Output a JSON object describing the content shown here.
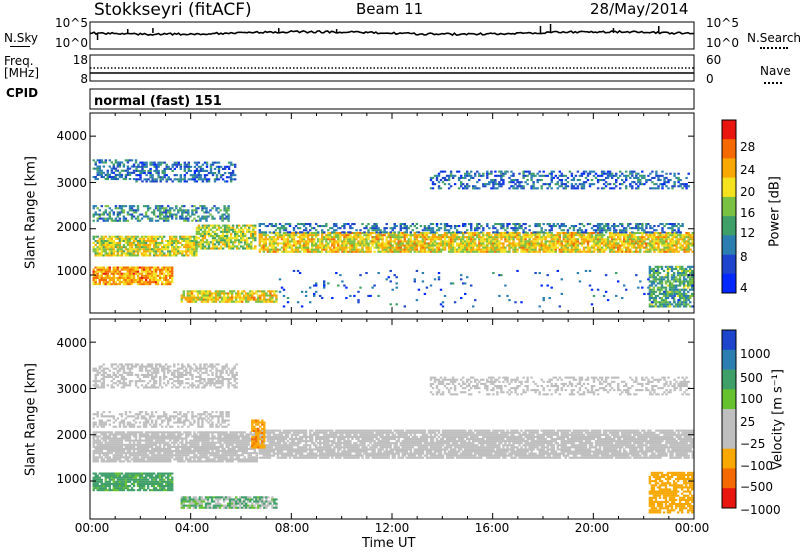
{
  "header": {
    "site": "Stokkseyri (fitACF)",
    "beam": "Beam 11",
    "date": "28/May/2014"
  },
  "side_labels": {
    "nsky": "N.Sky",
    "freq": "Freq.",
    "mhz": "[MHz]",
    "cpid": "CPID",
    "nsearch": "N.Search",
    "nave": "Nave"
  },
  "cpid_text": "normal (fast) 151",
  "top_ticks": {
    "nsky_left": [
      "10^5",
      "10^0"
    ],
    "nsky_right": [
      "10^5",
      "10^0"
    ],
    "freq_left": [
      "18",
      "8"
    ],
    "freq_right": [
      "60",
      "0"
    ]
  },
  "colors": {
    "power_scale": [
      "#0028ff",
      "#1c44cc",
      "#2a7fb0",
      "#3f9f68",
      "#7ac143",
      "#f5e21e",
      "#f8a800",
      "#f56a00",
      "#e8160e"
    ],
    "velocity_scale": [
      "#e8160e",
      "#f56a00",
      "#f8a800",
      "#bfbfbf",
      "#bfbfbf",
      "#65c12e",
      "#3f9f68",
      "#2a7fb0",
      "#1c44cc"
    ],
    "ground_scatter": "#bebebe"
  },
  "chart_data": [
    {
      "type": "heatmap",
      "title": "Power",
      "xlabel": "",
      "ylabel": "Slant Range [km]",
      "x_ticks": [
        "00:00",
        "04:00",
        "08:00",
        "12:00",
        "16:00",
        "20:00",
        "00:00"
      ],
      "y_ticks": [
        "1000",
        "2000",
        "3000",
        "4000"
      ],
      "xlim_hours": [
        0,
        24
      ],
      "ylim_km": [
        180,
        4500
      ],
      "colorbar_label": "Power [dB]",
      "colorbar_ticks": [
        "4",
        "8",
        "12",
        "16",
        "20",
        "24",
        "28"
      ],
      "colorbar_range": [
        0,
        30
      ],
      "bands": [
        {
          "t0": 0.1,
          "t1": 1.8,
          "r0": 3050,
          "r1": 3500,
          "dens": 0.55,
          "p": 8
        },
        {
          "t0": 1.8,
          "t1": 5.8,
          "r0": 3000,
          "r1": 3450,
          "dens": 0.5,
          "p": 7
        },
        {
          "t0": 0.1,
          "t1": 5.5,
          "r0": 2150,
          "r1": 2500,
          "dens": 0.5,
          "p": 10
        },
        {
          "t0": 0.1,
          "t1": 4.2,
          "r0": 1400,
          "r1": 1850,
          "dens": 0.85,
          "p": 17
        },
        {
          "t0": 4.2,
          "t1": 6.6,
          "r0": 1550,
          "r1": 2050,
          "dens": 0.75,
          "p": 16
        },
        {
          "t0": 0.1,
          "t1": 3.3,
          "r0": 780,
          "r1": 1150,
          "dens": 0.85,
          "p": 22
        },
        {
          "t0": 3.6,
          "t1": 7.4,
          "r0": 400,
          "r1": 650,
          "dens": 0.8,
          "p": 19
        },
        {
          "t0": 6.7,
          "t1": 23.9,
          "r0": 1480,
          "r1": 1900,
          "dens": 0.85,
          "p": 19
        },
        {
          "t0": 6.7,
          "t1": 23.5,
          "r0": 1900,
          "r1": 2100,
          "dens": 0.45,
          "p": 8
        },
        {
          "t0": 13.5,
          "t1": 23.8,
          "r0": 2850,
          "r1": 3250,
          "dens": 0.4,
          "p": 7
        },
        {
          "t0": 22.2,
          "t1": 23.9,
          "r0": 300,
          "r1": 1200,
          "dens": 0.7,
          "p": 12
        },
        {
          "t0": 7.5,
          "t1": 23.9,
          "r0": 300,
          "r1": 1100,
          "dens": 0.04,
          "p": 6
        }
      ]
    },
    {
      "type": "heatmap",
      "title": "Velocity",
      "xlabel": "Time UT",
      "ylabel": "Slant Range [km]",
      "x_ticks": [
        "00:00",
        "04:00",
        "08:00",
        "12:00",
        "16:00",
        "20:00",
        "00:00"
      ],
      "y_ticks": [
        "1000",
        "2000",
        "3000",
        "4000"
      ],
      "xlim_hours": [
        0,
        24
      ],
      "ylim_km": [
        180,
        4500
      ],
      "colorbar_label": "Velocity [m s⁻¹]",
      "colorbar_ticks": [
        "1000",
        "500",
        "100",
        "25",
        "−25",
        "−100",
        "−500",
        "−1000"
      ],
      "bands": [
        {
          "t0": 0.1,
          "t1": 5.8,
          "r0": 3000,
          "r1": 3500,
          "dens": 0.5,
          "v": 0
        },
        {
          "t0": 0.1,
          "t1": 5.5,
          "r0": 2150,
          "r1": 2500,
          "dens": 0.5,
          "v": 0
        },
        {
          "t0": 0.1,
          "t1": 6.6,
          "r0": 1400,
          "r1": 2050,
          "dens": 0.85,
          "v": 0
        },
        {
          "t0": 0.1,
          "t1": 3.3,
          "r0": 780,
          "r1": 1150,
          "dens": 0.85,
          "v": 200
        },
        {
          "t0": 3.6,
          "t1": 7.4,
          "r0": 400,
          "r1": 650,
          "dens": 0.8,
          "v": 80
        },
        {
          "t0": 6.7,
          "t1": 23.9,
          "r0": 1480,
          "r1": 2100,
          "dens": 0.85,
          "v": 0
        },
        {
          "t0": 13.5,
          "t1": 23.8,
          "r0": 2850,
          "r1": 3250,
          "dens": 0.4,
          "v": 0
        },
        {
          "t0": 22.2,
          "t1": 23.9,
          "r0": 300,
          "r1": 1200,
          "dens": 0.7,
          "v": -300
        },
        {
          "t0": 6.4,
          "t1": 6.9,
          "r0": 1700,
          "r1": 2300,
          "dens": 0.8,
          "v": -400
        }
      ]
    }
  ]
}
